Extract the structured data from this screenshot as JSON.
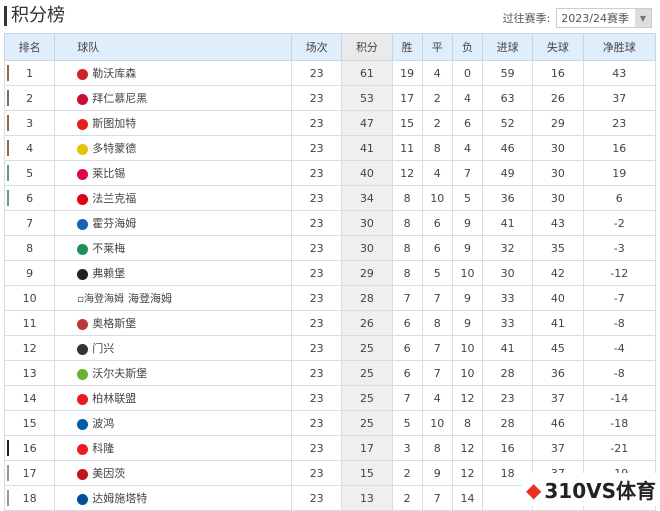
{
  "title": "积分榜",
  "season": {
    "label": "过往赛季:",
    "value": "2023/24赛季"
  },
  "headers": [
    "排名",
    "球队",
    "场次",
    "积分",
    "胜",
    "平",
    "负",
    "进球",
    "失球",
    "净胜球"
  ],
  "zone_colors": {
    "champions": "#8b6a55",
    "europa": "#5fa07d",
    "relegation_playoff": "#222222",
    "relegation": "#999999"
  },
  "rows": [
    {
      "rank": "1",
      "team": "勒沃库森",
      "p": "23",
      "pts": "61",
      "w": "19",
      "d": "4",
      "l": "0",
      "gf": "59",
      "ga": "16",
      "gd": "43",
      "zone": "champions",
      "logo": "#d2232a"
    },
    {
      "rank": "2",
      "team": "拜仁慕尼黑",
      "p": "23",
      "pts": "53",
      "w": "17",
      "d": "2",
      "l": "4",
      "gf": "63",
      "ga": "26",
      "gd": "37",
      "zone": "champions",
      "logo": "#c8102e"
    },
    {
      "rank": "3",
      "team": "斯图加特",
      "p": "23",
      "pts": "47",
      "w": "15",
      "d": "2",
      "l": "6",
      "gf": "52",
      "ga": "29",
      "gd": "23",
      "zone": "champions",
      "logo": "#e32219"
    },
    {
      "rank": "4",
      "team": "多特蒙德",
      "p": "23",
      "pts": "41",
      "w": "11",
      "d": "8",
      "l": "4",
      "gf": "46",
      "ga": "30",
      "gd": "16",
      "zone": "champions",
      "logo": "#e5c600"
    },
    {
      "rank": "5",
      "team": "莱比锡",
      "p": "23",
      "pts": "40",
      "w": "12",
      "d": "4",
      "l": "7",
      "gf": "49",
      "ga": "30",
      "gd": "19",
      "zone": "europa",
      "logo": "#dd0741"
    },
    {
      "rank": "6",
      "team": "法兰克福",
      "p": "23",
      "pts": "34",
      "w": "8",
      "d": "10",
      "l": "5",
      "gf": "36",
      "ga": "30",
      "gd": "6",
      "zone": "europa",
      "logo": "#e1000f"
    },
    {
      "rank": "7",
      "team": "霍芬海姆",
      "p": "23",
      "pts": "30",
      "w": "8",
      "d": "6",
      "l": "9",
      "gf": "41",
      "ga": "43",
      "gd": "-2",
      "zone": "",
      "logo": "#1961b5"
    },
    {
      "rank": "8",
      "team": "不莱梅",
      "p": "23",
      "pts": "30",
      "w": "8",
      "d": "6",
      "l": "9",
      "gf": "32",
      "ga": "35",
      "gd": "-3",
      "zone": "",
      "logo": "#1d9053"
    },
    {
      "rank": "9",
      "team": "弗赖堡",
      "p": "23",
      "pts": "29",
      "w": "8",
      "d": "5",
      "l": "10",
      "gf": "30",
      "ga": "42",
      "gd": "-12",
      "zone": "",
      "logo": "#222222"
    },
    {
      "rank": "10",
      "team": "海登海姆",
      "logo_alt": "海登海姆",
      "p": "23",
      "pts": "28",
      "w": "7",
      "d": "7",
      "l": "9",
      "gf": "33",
      "ga": "40",
      "gd": "-7",
      "zone": "",
      "logo": ""
    },
    {
      "rank": "11",
      "team": "奥格斯堡",
      "p": "23",
      "pts": "26",
      "w": "6",
      "d": "8",
      "l": "9",
      "gf": "33",
      "ga": "41",
      "gd": "-8",
      "zone": "",
      "logo": "#ba3733"
    },
    {
      "rank": "12",
      "team": "门兴",
      "p": "23",
      "pts": "25",
      "w": "6",
      "d": "7",
      "l": "10",
      "gf": "41",
      "ga": "45",
      "gd": "-4",
      "zone": "",
      "logo": "#333333"
    },
    {
      "rank": "13",
      "team": "沃尔夫斯堡",
      "p": "23",
      "pts": "25",
      "w": "6",
      "d": "7",
      "l": "10",
      "gf": "28",
      "ga": "36",
      "gd": "-8",
      "zone": "",
      "logo": "#65b32e"
    },
    {
      "rank": "14",
      "team": "柏林联盟",
      "p": "23",
      "pts": "25",
      "w": "7",
      "d": "4",
      "l": "12",
      "gf": "23",
      "ga": "37",
      "gd": "-14",
      "zone": "",
      "logo": "#eb1923"
    },
    {
      "rank": "15",
      "team": "波鸿",
      "p": "23",
      "pts": "25",
      "w": "5",
      "d": "10",
      "l": "8",
      "gf": "28",
      "ga": "46",
      "gd": "-18",
      "zone": "",
      "logo": "#005ca9"
    },
    {
      "rank": "16",
      "team": "科隆",
      "p": "23",
      "pts": "17",
      "w": "3",
      "d": "8",
      "l": "12",
      "gf": "16",
      "ga": "37",
      "gd": "-21",
      "zone": "relegation_playoff",
      "logo": "#ed1c24"
    },
    {
      "rank": "17",
      "team": "美因茨",
      "p": "23",
      "pts": "15",
      "w": "2",
      "d": "9",
      "l": "12",
      "gf": "18",
      "ga": "37",
      "gd": "-19",
      "zone": "relegation",
      "logo": "#c3141e"
    },
    {
      "rank": "18",
      "team": "达姆施塔特",
      "p": "23",
      "pts": "13",
      "w": "2",
      "d": "7",
      "l": "14",
      "gf": "",
      "ga": "",
      "gd": "",
      "zone": "relegation",
      "logo": "#004e9e"
    }
  ],
  "watermark": "310VS体育"
}
